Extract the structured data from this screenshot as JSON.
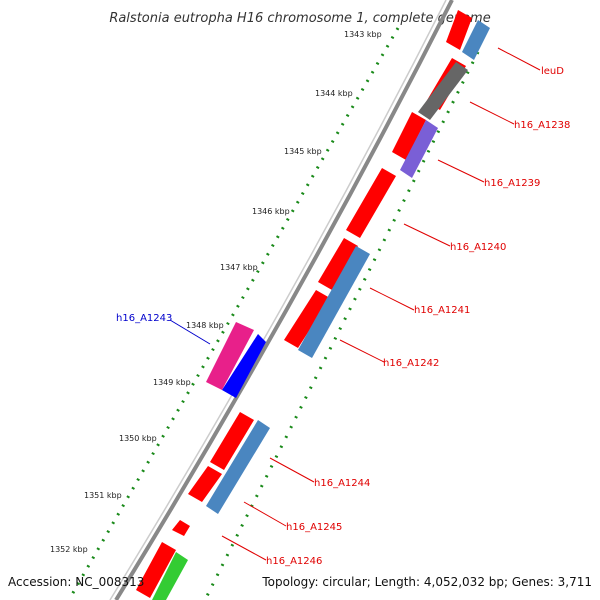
{
  "header": {
    "title": "Ralstonia eutropha H16 chromosome 1, complete genome"
  },
  "footer": {
    "accession": "Accession: NC_008313",
    "summary": "Topology: circular; Length: 4,052,032 bp; Genes: 3,711"
  },
  "scale": {
    "ticks": [
      "1343 kbp",
      "1344 kbp",
      "1345 kbp",
      "1346 kbp",
      "1347 kbp",
      "1348 kbp",
      "1349 kbp",
      "1350 kbp",
      "1351 kbp",
      "1352 kbp"
    ]
  },
  "genes": {
    "labels": [
      "leuD",
      "h16_A1238",
      "h16_A1239",
      "h16_A1240",
      "h16_A1241",
      "h16_A1242",
      "h16_A1243",
      "h16_A1244",
      "h16_A1245",
      "h16_A1246"
    ]
  },
  "colors": {
    "cds": "#ff0000",
    "forward_gene": "#4a86c0",
    "reverse_gene": "#0000ff",
    "other_gene": "#e8208a",
    "green_gene": "#33cc33",
    "grey_gene": "#666666",
    "purple_gene": "#7a5fd6",
    "backbone": "#888888",
    "gc_dots": "#1a8a1a",
    "label_red": "#e00000",
    "label_blue": "#0000cc"
  }
}
